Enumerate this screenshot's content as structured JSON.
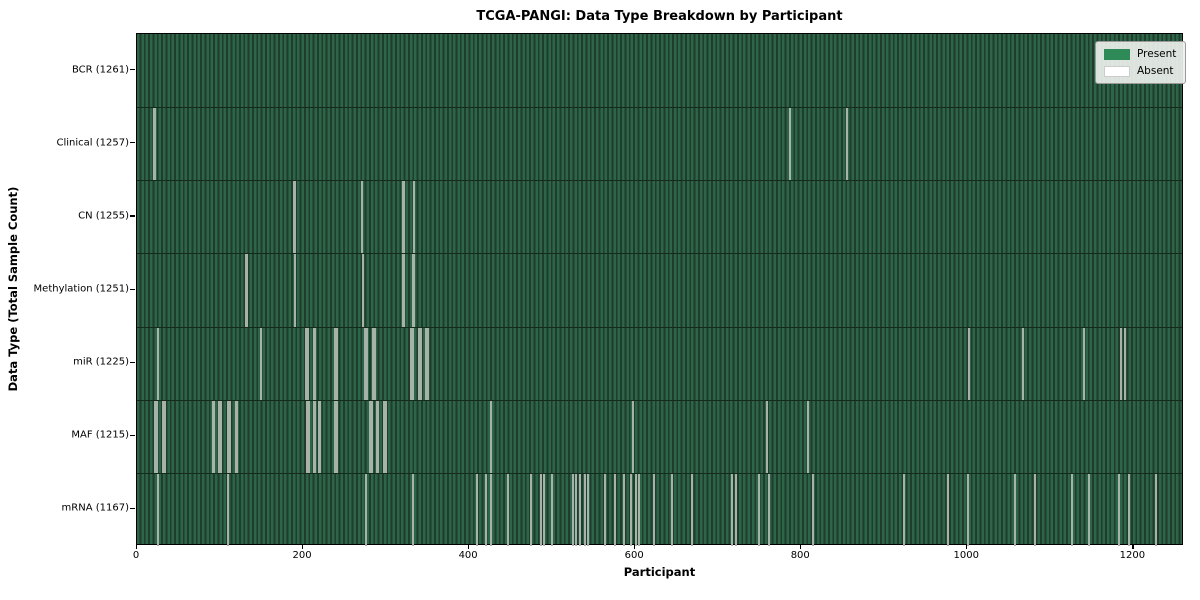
{
  "chart_data": {
    "type": "heatmap",
    "title": "TCGA-PANGI: Data Type Breakdown by Participant",
    "xlabel": "Participant",
    "ylabel": "Data Type (Total Sample Count)",
    "xlim": [
      0,
      1261
    ],
    "x_ticks": [
      0,
      200,
      400,
      600,
      800,
      1000,
      1200
    ],
    "grid": false,
    "legend_position": "upper right",
    "legend_items": [
      {
        "label": "Present",
        "color": "#2e8b57"
      },
      {
        "label": "Absent",
        "color": "#ffffff"
      }
    ],
    "colors": {
      "present_fill": "#2e8b57",
      "present_field_light": "#2d6549",
      "present_field_dark": "#1f3c2c",
      "absent_line": "#a7b2a9",
      "row_separator": "#142a1c"
    },
    "rows": [
      {
        "data_type": "BCR",
        "label": "BCR (1261)",
        "present_count": 1261,
        "absent_positions": []
      },
      {
        "data_type": "Clinical",
        "label": "Clinical (1257)",
        "present_count": 1257,
        "absent_positions": [
          19,
          21,
          787,
          856
        ]
      },
      {
        "data_type": "CN",
        "label": "CN (1255)",
        "present_count": 1255,
        "absent_positions": [
          188,
          189,
          270,
          320,
          321,
          333
        ]
      },
      {
        "data_type": "Methylation",
        "label": "Methylation (1251)",
        "present_count": 1251,
        "absent_positions": [
          130,
          131,
          189,
          190,
          271,
          272,
          320,
          321,
          332,
          333
        ]
      },
      {
        "data_type": "miR",
        "label": "miR (1225)",
        "present_count": 1225,
        "absent_positions": [
          24,
          149,
          203,
          205,
          212,
          214,
          238,
          240,
          274,
          276,
          284,
          286,
          330,
          332,
          339,
          341,
          348,
          350,
          1003,
          1068,
          1141,
          1186,
          1191
        ]
      },
      {
        "data_type": "MAF",
        "label": "MAF (1215)",
        "present_count": 1215,
        "absent_positions": [
          21,
          23,
          30,
          32,
          90,
          92,
          98,
          100,
          109,
          111,
          118,
          120,
          204,
          206,
          212,
          214,
          218,
          220,
          238,
          240,
          280,
          282,
          288,
          290,
          297,
          299,
          426,
          597,
          759,
          808
        ]
      },
      {
        "data_type": "mRNA",
        "label": "mRNA (1167)",
        "present_count": 1167,
        "absent_positions": [
          24,
          109,
          275,
          332,
          409,
          420,
          426,
          447,
          474,
          486,
          490,
          500,
          525,
          529,
          533,
          539,
          543,
          563,
          576,
          587,
          595,
          601,
          605,
          623,
          644,
          668,
          717,
          722,
          749,
          762,
          815,
          924,
          977,
          1001,
          1058,
          1082,
          1127,
          1147,
          1184,
          1196,
          1228
        ]
      }
    ]
  }
}
